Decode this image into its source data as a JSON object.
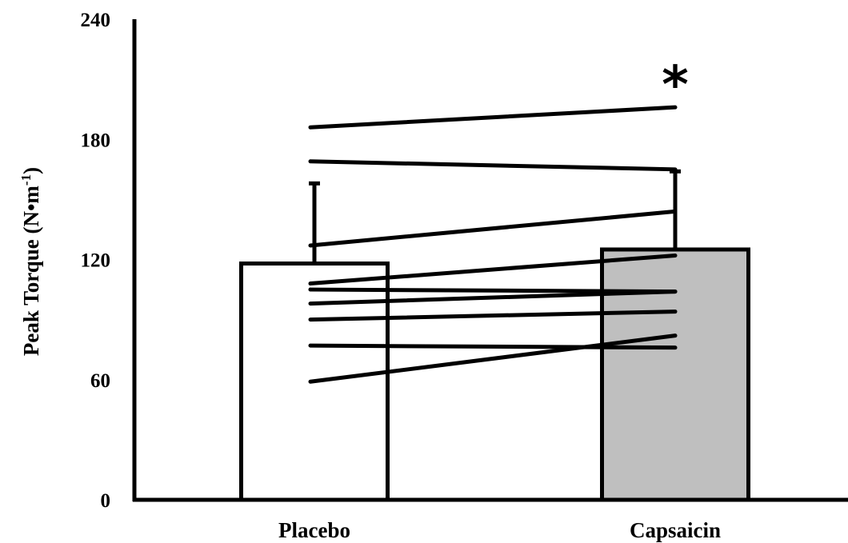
{
  "chart_data": {
    "type": "bar",
    "categories": [
      "Placebo",
      "Capsaicin"
    ],
    "values": [
      118,
      125
    ],
    "error_bars": [
      40,
      39
    ],
    "bar_colors": [
      "#ffffff",
      "#bfbfbf"
    ],
    "ylabel_main": "Peak Torque (N•m",
    "ylabel_sup": "-1",
    "ylabel_close": ")",
    "ylim": [
      0,
      240
    ],
    "yticks": [
      0,
      60,
      120,
      180,
      240
    ],
    "grid": false,
    "annotations": [
      {
        "text": "*",
        "category": "Capsaicin"
      }
    ],
    "individual_lines": [
      {
        "values": [
          186,
          196
        ]
      },
      {
        "values": [
          169,
          165
        ]
      },
      {
        "values": [
          127,
          144
        ]
      },
      {
        "values": [
          108,
          122
        ]
      },
      {
        "values": [
          105,
          104
        ]
      },
      {
        "values": [
          98,
          104
        ]
      },
      {
        "values": [
          90,
          94
        ]
      },
      {
        "values": [
          77,
          76
        ]
      },
      {
        "values": [
          59,
          82
        ]
      }
    ]
  }
}
